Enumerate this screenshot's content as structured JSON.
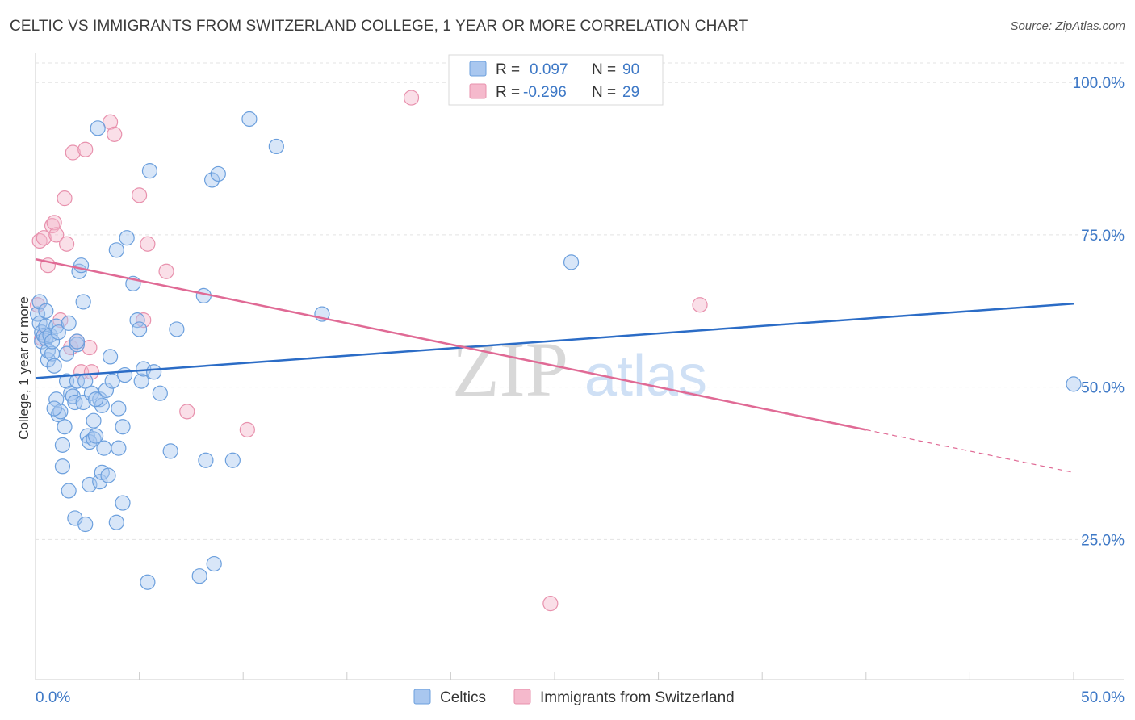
{
  "header": {
    "title": "CELTIC VS IMMIGRANTS FROM SWITZERLAND COLLEGE, 1 YEAR OR MORE CORRELATION CHART",
    "source": "Source: ZipAtlas.com"
  },
  "watermark": {
    "zip": "ZIP",
    "atlas": "atlas"
  },
  "stats_legend": [
    {
      "r_label": "R =",
      "r_value": "0.097",
      "n_label": "N =",
      "n_value": "90"
    },
    {
      "r_label": "R =",
      "r_value": "-0.296",
      "n_label": "N =",
      "n_value": "29"
    }
  ],
  "colors": {
    "celtic_fill": "#a9c7ef",
    "celtic_stroke": "#6b9fdd",
    "celtic_line": "#2b6cc6",
    "swiss_fill": "#f5b9cc",
    "swiss_stroke": "#e891ad",
    "swiss_line": "#e06a95",
    "axis_text": "#3d78c6",
    "grid": "#e3e3e3"
  },
  "chart_data": {
    "type": "scatter",
    "title": "CELTIC VS IMMIGRANTS FROM SWITZERLAND COLLEGE, 1 YEAR OR MORE CORRELATION CHART",
    "xlabel": "",
    "ylabel": "College, 1 year or more",
    "xlim": [
      0,
      50
    ],
    "ylim": [
      2,
      104
    ],
    "x_ticks": [
      {
        "value": 0,
        "label": "0.0%"
      },
      {
        "value": 50,
        "label": "50.0%"
      }
    ],
    "y_ticks": [
      {
        "value": 25,
        "label": "25.0%"
      },
      {
        "value": 50,
        "label": "50.0%"
      },
      {
        "value": 75,
        "label": "75.0%"
      },
      {
        "value": 100,
        "label": "100.0%"
      }
    ],
    "grid": true,
    "series": [
      {
        "name": "Celtics",
        "r": 0.097,
        "n": 90,
        "trend": {
          "x0": 0,
          "y0": 51.5,
          "x1": 50,
          "y1": 63.7
        },
        "points": [
          [
            0.1,
            62.0
          ],
          [
            0.2,
            60.5
          ],
          [
            0.3,
            59.0
          ],
          [
            0.3,
            57.5
          ],
          [
            0.4,
            58.5
          ],
          [
            0.5,
            60.0
          ],
          [
            0.5,
            58.0
          ],
          [
            0.6,
            54.5
          ],
          [
            0.6,
            56.0
          ],
          [
            0.7,
            58.5
          ],
          [
            0.8,
            55.5
          ],
          [
            0.8,
            57.5
          ],
          [
            0.9,
            53.5
          ],
          [
            1.0,
            48.0
          ],
          [
            1.0,
            60.0
          ],
          [
            1.1,
            59.0
          ],
          [
            1.1,
            45.5
          ],
          [
            1.2,
            46.0
          ],
          [
            1.3,
            40.5
          ],
          [
            1.3,
            37.0
          ],
          [
            1.4,
            43.5
          ],
          [
            1.5,
            55.5
          ],
          [
            1.5,
            51.0
          ],
          [
            1.6,
            33.0
          ],
          [
            1.7,
            49.0
          ],
          [
            1.8,
            48.5
          ],
          [
            1.9,
            47.5
          ],
          [
            1.9,
            28.5
          ],
          [
            2.0,
            51.0
          ],
          [
            2.0,
            57.0
          ],
          [
            2.1,
            69.0
          ],
          [
            2.2,
            70.0
          ],
          [
            2.3,
            64.0
          ],
          [
            2.3,
            47.5
          ],
          [
            2.4,
            51.0
          ],
          [
            2.4,
            27.5
          ],
          [
            2.5,
            42.0
          ],
          [
            2.6,
            34.0
          ],
          [
            2.6,
            41.0
          ],
          [
            2.7,
            49.0
          ],
          [
            2.8,
            44.5
          ],
          [
            2.8,
            41.5
          ],
          [
            2.9,
            42.0
          ],
          [
            3.0,
            92.5
          ],
          [
            3.1,
            48.0
          ],
          [
            3.1,
            34.5
          ],
          [
            3.2,
            36.0
          ],
          [
            3.2,
            47.0
          ],
          [
            3.3,
            40.0
          ],
          [
            3.4,
            49.5
          ],
          [
            3.5,
            35.5
          ],
          [
            3.6,
            55.0
          ],
          [
            3.7,
            51.0
          ],
          [
            3.9,
            27.8
          ],
          [
            3.9,
            72.5
          ],
          [
            4.0,
            40.0
          ],
          [
            4.0,
            46.5
          ],
          [
            4.2,
            31.0
          ],
          [
            4.2,
            43.5
          ],
          [
            4.4,
            74.5
          ],
          [
            4.7,
            67.0
          ],
          [
            4.9,
            61.0
          ],
          [
            5.0,
            59.5
          ],
          [
            5.1,
            51.0
          ],
          [
            5.2,
            53.0
          ],
          [
            5.4,
            18.0
          ],
          [
            5.5,
            85.5
          ],
          [
            5.7,
            52.5
          ],
          [
            6.5,
            39.5
          ],
          [
            6.8,
            59.5
          ],
          [
            7.9,
            19.0
          ],
          [
            8.1,
            65.0
          ],
          [
            8.2,
            38.0
          ],
          [
            8.5,
            84.0
          ],
          [
            8.6,
            21.0
          ],
          [
            8.8,
            85.0
          ],
          [
            9.5,
            38.0
          ],
          [
            10.3,
            94.0
          ],
          [
            11.6,
            89.5
          ],
          [
            13.8,
            62.0
          ],
          [
            25.8,
            70.5
          ],
          [
            50.0,
            50.5
          ],
          [
            0.2,
            64.0
          ],
          [
            0.5,
            62.5
          ],
          [
            0.9,
            46.5
          ],
          [
            1.6,
            60.5
          ],
          [
            2.0,
            57.5
          ],
          [
            2.9,
            48.0
          ],
          [
            4.3,
            52.0
          ],
          [
            6.0,
            49.0
          ]
        ]
      },
      {
        "name": "Immigrants from Switzerland",
        "r": -0.296,
        "n": 29,
        "trend": {
          "x0": 0,
          "y0": 71.0,
          "x1": 40,
          "y1": 43.0,
          "dash_x1": 50,
          "dash_y1": 36.0
        },
        "points": [
          [
            0.1,
            63.5
          ],
          [
            0.2,
            74.0
          ],
          [
            0.4,
            74.5
          ],
          [
            0.6,
            70.0
          ],
          [
            0.8,
            76.5
          ],
          [
            0.9,
            77.0
          ],
          [
            1.0,
            75.0
          ],
          [
            1.2,
            61.0
          ],
          [
            1.4,
            81.0
          ],
          [
            1.5,
            73.5
          ],
          [
            1.7,
            56.5
          ],
          [
            1.8,
            88.5
          ],
          [
            2.0,
            57.5
          ],
          [
            2.2,
            52.5
          ],
          [
            2.4,
            89.0
          ],
          [
            2.6,
            56.5
          ],
          [
            2.7,
            52.5
          ],
          [
            3.6,
            93.5
          ],
          [
            3.8,
            91.5
          ],
          [
            5.0,
            81.5
          ],
          [
            5.2,
            61.0
          ],
          [
            5.4,
            73.5
          ],
          [
            6.3,
            69.0
          ],
          [
            7.3,
            46.0
          ],
          [
            10.2,
            43.0
          ],
          [
            18.1,
            97.5
          ],
          [
            24.8,
            14.5
          ],
          [
            32.0,
            63.5
          ],
          [
            0.3,
            58.0
          ]
        ]
      }
    ]
  },
  "bottom_legend": {
    "celtics": "Celtics",
    "swiss": "Immigrants from Switzerland"
  }
}
